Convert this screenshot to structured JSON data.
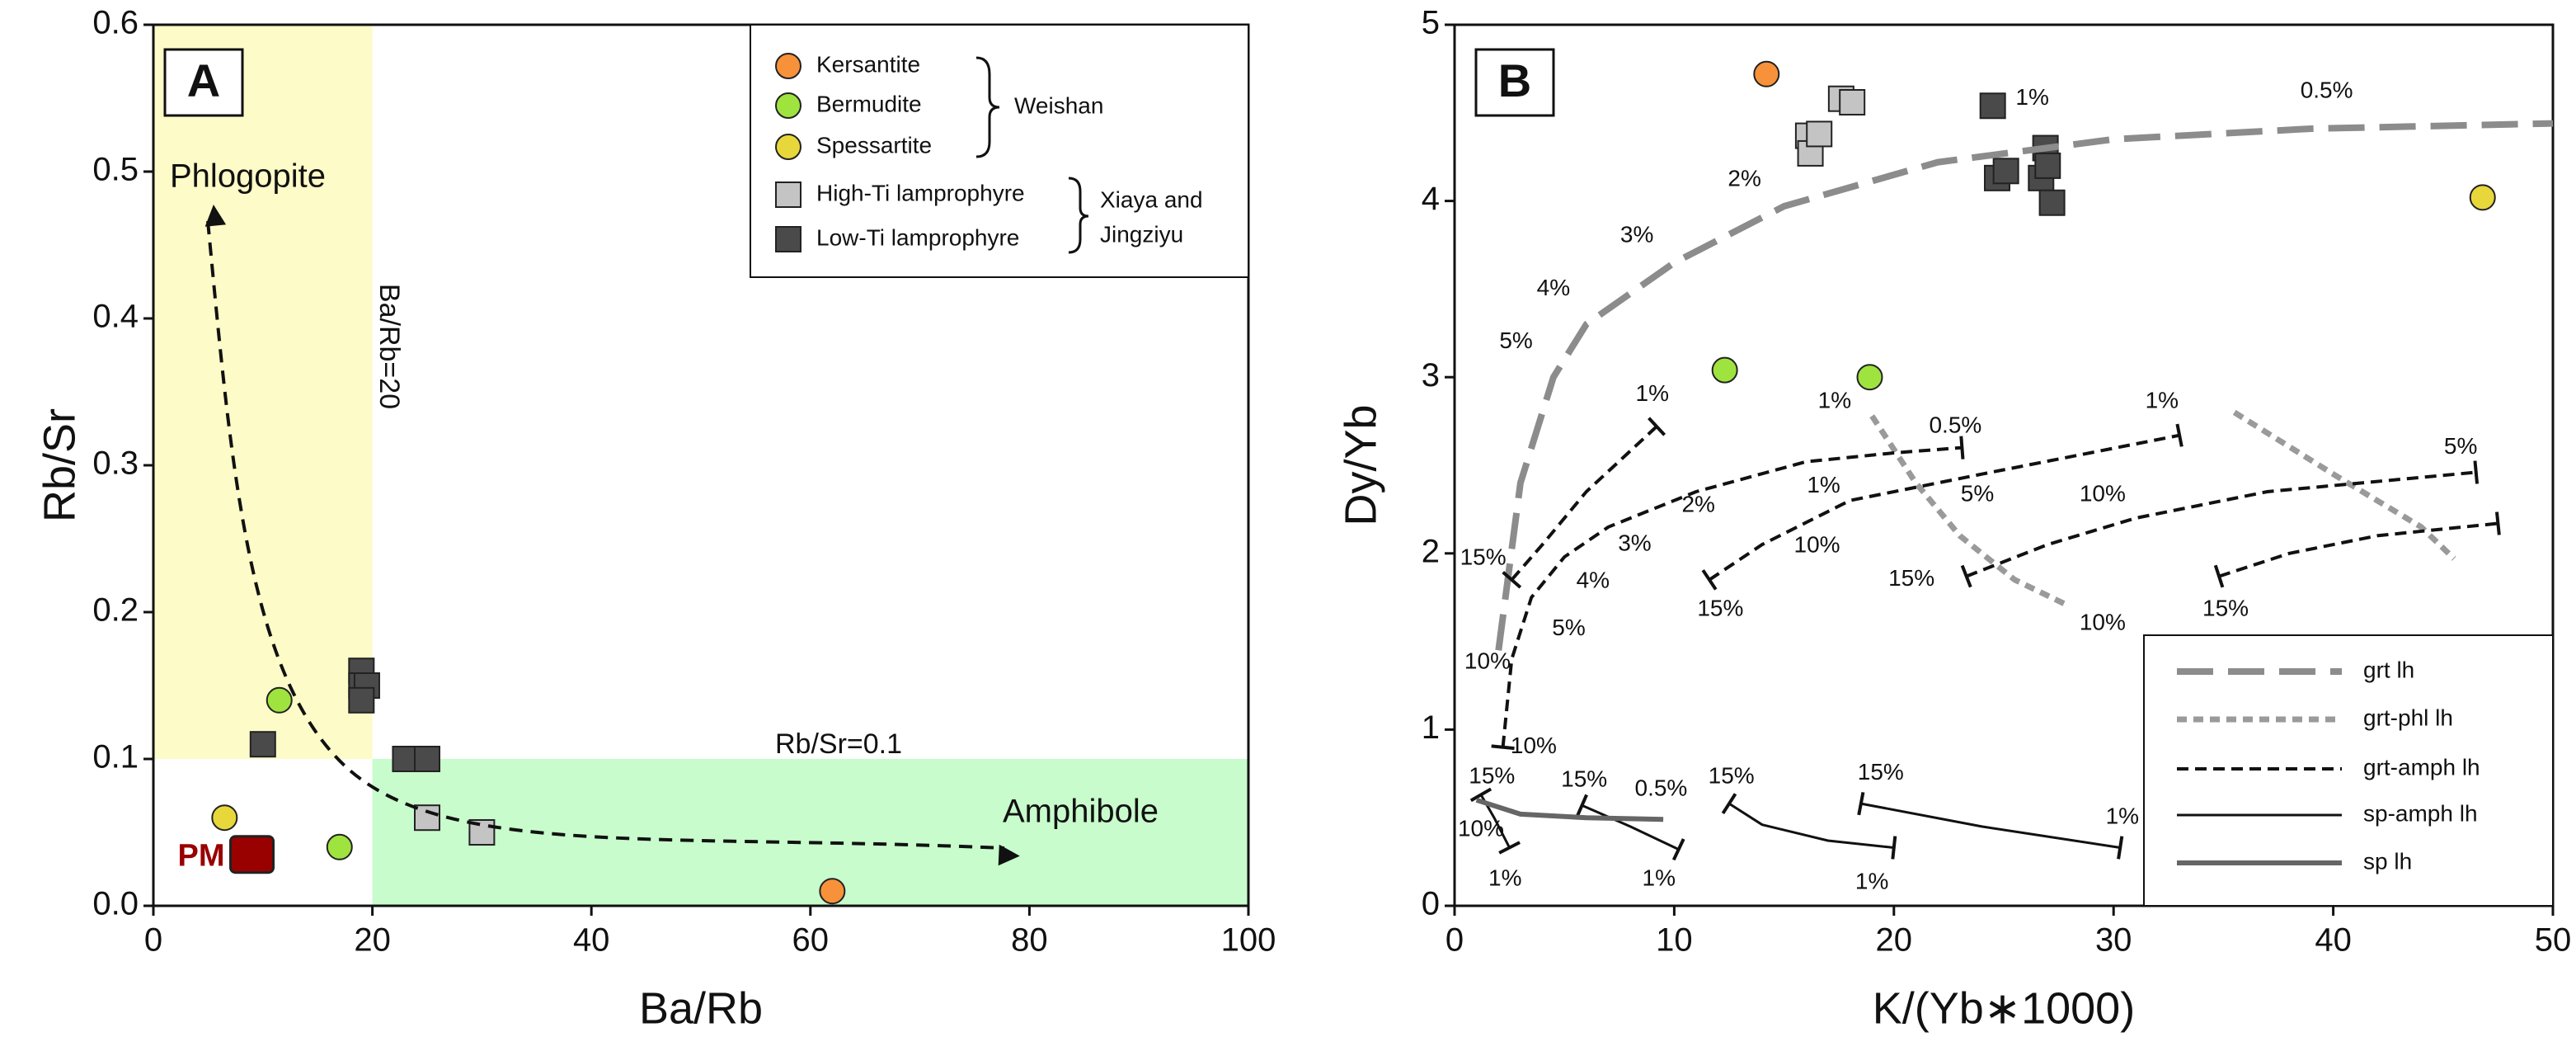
{
  "chart_data": [
    {
      "type": "scatter",
      "xlabel": "Ba/Rb",
      "ylabel": "Rb/Sr",
      "xlim": [
        0,
        100
      ],
      "ylim": [
        0,
        0.6
      ],
      "xticks": [
        0,
        20,
        40,
        60,
        80,
        100
      ],
      "yticks": [
        {
          "value": 0,
          "label": "0.0"
        },
        0.1,
        0.2,
        0.3,
        0.4,
        0.5,
        0.6
      ],
      "regions": [
        {
          "name": "Phlogopite",
          "color": "#fdfbc8",
          "xlim": [
            0,
            20
          ],
          "ylim": [
            0.1,
            0.6
          ]
        },
        {
          "name": "Amphibole",
          "color": "#c8fccc",
          "xlim": [
            20,
            100
          ],
          "ylim": [
            0,
            0.1
          ]
        }
      ],
      "annotations": [
        "A",
        "Ba/Rb=20",
        "Rb/Sr=0.1"
      ],
      "legend_groups": [
        {
          "lines": [
            "Weishan"
          ]
        },
        {
          "lines": [
            "Xiaya and",
            "Jingziyu"
          ]
        }
      ],
      "series": [
        {
          "name": "Kersantite",
          "color": "#f7923a",
          "marker": "circle",
          "x": [
            62
          ],
          "y": [
            0.01
          ]
        },
        {
          "name": "Bermudite",
          "color": "#9fe33f",
          "marker": "circle",
          "x": [
            11.5,
            17
          ],
          "y": [
            0.14,
            0.04
          ]
        },
        {
          "name": "Spessartite",
          "color": "#e8d73a",
          "marker": "circle",
          "x": [
            6.5
          ],
          "y": [
            0.06
          ]
        },
        {
          "name": "High-Ti lamprophyre",
          "color": "#c4c4c4",
          "marker": "square",
          "x": [
            25,
            30
          ],
          "y": [
            0.06,
            0.05
          ]
        },
        {
          "name": "Low-Ti lamprophyre",
          "color": "#4a4a4a",
          "marker": "square",
          "x": [
            10,
            19,
            19,
            19.5,
            19,
            23,
            25
          ],
          "y": [
            0.11,
            0.16,
            0.15,
            0.15,
            0.14,
            0.1,
            0.1
          ]
        },
        {
          "name": "PM",
          "color": "#990000",
          "marker": "big-square",
          "x": [
            9
          ],
          "y": [
            0.035
          ],
          "legend": false
        }
      ]
    },
    {
      "type": "scatter",
      "xlabel": "K/(Yb∗1000)",
      "ylabel": "Dy/Yb",
      "xlim": [
        0,
        50
      ],
      "ylim": [
        0,
        5
      ],
      "xticks": [
        0,
        10,
        20,
        30,
        40,
        50
      ],
      "yticks": [
        0,
        1,
        2,
        3,
        4,
        5
      ],
      "annotations": [
        "B",
        "0.5%",
        "1%",
        "2%",
        "3%",
        "4%",
        "5%",
        "1%",
        "15%",
        "1%",
        "0.5%",
        "1%",
        "2%",
        "1%",
        "3%",
        "4%",
        "5%",
        "10%",
        "10%",
        "5%",
        "15%",
        "10%",
        "15%",
        "5%",
        "15%",
        "10%",
        "10%",
        "15%",
        "15%",
        "0.5%",
        "15%",
        "15%",
        "1%",
        "10%",
        "1%",
        "1%",
        "1%"
      ],
      "series": [
        {
          "color": "#f7923a",
          "marker": "circle",
          "x": [
            14.2
          ],
          "y": [
            4.72
          ],
          "legend": false
        },
        {
          "color": "#9fe33f",
          "marker": "circle",
          "x": [
            12.3,
            18.9
          ],
          "y": [
            3.04,
            3.0
          ],
          "legend": false
        },
        {
          "color": "#e8d73a",
          "marker": "circle",
          "x": [
            46.8
          ],
          "y": [
            4.02
          ],
          "legend": false
        },
        {
          "color": "#c4c4c4",
          "marker": "square",
          "x": [
            16.1,
            16.2,
            16.6,
            17.6,
            18.1
          ],
          "y": [
            4.37,
            4.27,
            4.38,
            4.58,
            4.56
          ],
          "legend": false
        },
        {
          "color": "#4a4a4a",
          "marker": "square",
          "x": [
            24.5,
            24.7,
            25.1,
            26.7,
            26.9,
            27.0,
            27.2
          ],
          "y": [
            4.54,
            4.13,
            4.17,
            4.13,
            4.3,
            4.2,
            3.99
          ],
          "legend": false
        },
        {
          "name": "grt lh",
          "mode": "line",
          "style": "long-dash",
          "color": "#8c8c8c",
          "x": [
            2,
            3,
            4.5,
            6,
            10,
            15,
            22,
            30,
            39,
            50
          ],
          "y": [
            1.45,
            2.4,
            3.0,
            3.3,
            3.65,
            3.97,
            4.22,
            4.35,
            4.41,
            4.44
          ]
        },
        {
          "name": "grt-phl lh",
          "mode": "line",
          "style": "dotted",
          "color": "#9a9a9a",
          "x": [
            19,
            21,
            23,
            25.5,
            28,
            null,
            35.5,
            40,
            44,
            45.5
          ],
          "y": [
            2.78,
            2.4,
            2.1,
            1.85,
            1.7,
            null,
            2.8,
            2.45,
            2.15,
            1.97
          ]
        },
        {
          "name": "grt-amph lh",
          "mode": "line",
          "style": "dashed",
          "color": "#111111",
          "end_caps": true,
          "x": [
            9.2,
            6,
            4,
            2.6,
            null,
            2.2,
            2.6,
            3.5,
            5,
            7,
            11,
            16,
            20,
            23.1,
            null,
            11.6,
            14,
            18,
            24,
            33,
            null,
            23.3,
            27,
            31,
            37,
            46.5,
            null,
            34.8,
            38,
            42,
            47.5
          ],
          "y": [
            2.72,
            2.35,
            2.05,
            1.85,
            null,
            0.9,
            1.4,
            1.75,
            1.98,
            2.15,
            2.35,
            2.52,
            2.57,
            2.6,
            null,
            1.85,
            2.05,
            2.3,
            2.45,
            2.67,
            null,
            1.87,
            2.05,
            2.2,
            2.35,
            2.46,
            null,
            1.87,
            2.0,
            2.1,
            2.17
          ]
        },
        {
          "name": "sp-amph lh",
          "mode": "line",
          "style": "solid",
          "color": "#111111",
          "end_caps": true,
          "x": [
            1.2,
            1.8,
            2.5,
            null,
            5.8,
            8,
            10.2,
            null,
            12.5,
            14,
            17,
            20,
            null,
            18.5,
            24,
            30.3
          ],
          "y": [
            0.63,
            0.5,
            0.33,
            null,
            0.57,
            0.45,
            0.32,
            null,
            0.58,
            0.46,
            0.37,
            0.33,
            null,
            0.58,
            0.45,
            0.33
          ]
        },
        {
          "name": "sp lh",
          "mode": "line",
          "style": "thick",
          "color": "#666666",
          "x": [
            1,
            3,
            6,
            9.5
          ],
          "y": [
            0.6,
            0.52,
            0.5,
            0.49
          ]
        }
      ]
    }
  ]
}
